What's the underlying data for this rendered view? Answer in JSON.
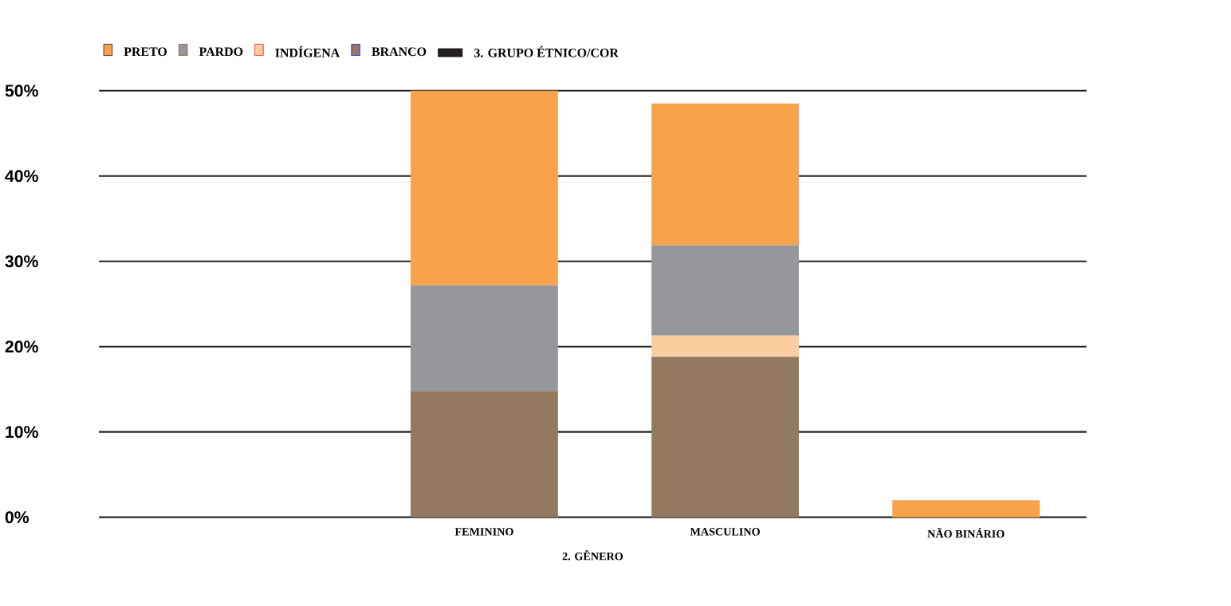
{
  "chart_data": {
    "type": "bar",
    "stacked": true,
    "categories": [
      null,
      "FEMININO",
      "MASCULINO",
      "NÃO BINÁRIO"
    ],
    "series": [
      {
        "name": "3. GRUPO ÉTNICO/COR",
        "color": "#231f20",
        "values": [
          null,
          null,
          null,
          null
        ]
      },
      {
        "name": "BRANCO",
        "color": "#927960",
        "values": [
          null,
          14.8,
          18.8,
          0
        ]
      },
      {
        "name": "INDÍGENA",
        "color": "#fcce9f",
        "values": [
          null,
          0,
          2.5,
          0
        ]
      },
      {
        "name": "PARDO",
        "color": "#96979a",
        "values": [
          null,
          12.4,
          10.6,
          0
        ]
      },
      {
        "name": "PRETO",
        "color": "#f8a34c",
        "values": [
          null,
          22.8,
          16.6,
          2.0
        ]
      }
    ],
    "xlabel": "2. GÊNERO",
    "ylim": [
      0,
      50
    ],
    "yticks": [
      {
        "value": 0,
        "label": "0%"
      },
      {
        "value": 10,
        "label": "10%"
      },
      {
        "value": 20,
        "label": "20%"
      },
      {
        "value": 30,
        "label": "30%"
      },
      {
        "value": 40,
        "label": "40%"
      },
      {
        "value": 50,
        "label": "50%"
      }
    ],
    "grid": "y",
    "legend": "top"
  }
}
